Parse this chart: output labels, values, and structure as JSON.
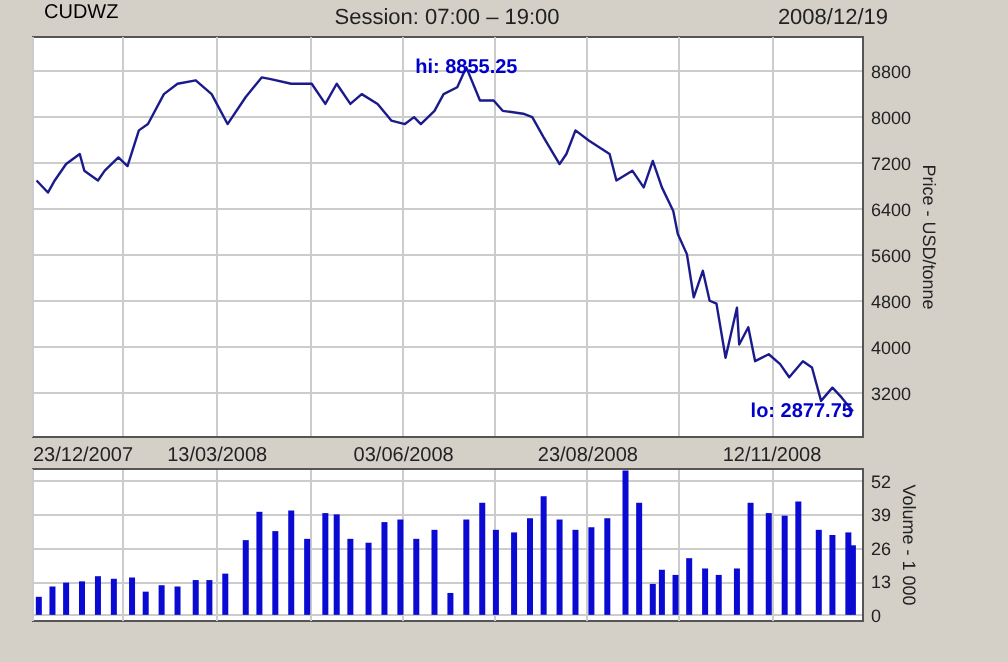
{
  "chart_data": [
    {
      "type": "line",
      "title": "Session: 07:00 – 19:00",
      "ylabel": "Price - USD/tonne",
      "legend": "top left",
      "grid": true,
      "tick_labels": "y",
      "annotations": [
        "2008/12/19",
        {
          "text": "hi: 8855.25",
          "x": "2008-07-01",
          "y": 8855.25
        },
        {
          "text": "lo: 2877.75",
          "x": "2008-12-18",
          "y": 2877.75
        }
      ],
      "xlim": [
        "2007-12-23",
        "2008-12-22"
      ],
      "xticks": [
        "2007-12-23",
        "2008-02-01",
        "2008-03-13",
        "2008-04-23",
        "2008-06-03",
        "2008-07-13",
        "2008-08-23",
        "2008-10-02",
        "2008-11-12"
      ],
      "ylim": [
        2450,
        9400
      ],
      "yticks": [
        3200,
        4000,
        4800,
        5600,
        6400,
        7200,
        8000,
        8800
      ],
      "series": [
        {
          "name": "CUDWZ",
          "color": "#1a1a8c",
          "x": [
            "2007-12-25",
            "2007-12-30",
            "2008-01-02",
            "2008-01-07",
            "2008-01-13",
            "2008-01-15",
            "2008-01-21",
            "2008-01-24",
            "2008-01-30",
            "2008-02-03",
            "2008-02-08",
            "2008-02-12",
            "2008-02-19",
            "2008-02-25",
            "2008-03-04",
            "2008-03-11",
            "2008-03-18",
            "2008-03-26",
            "2008-04-02",
            "2008-04-06",
            "2008-04-15",
            "2008-04-24",
            "2008-04-30",
            "2008-05-05",
            "2008-05-11",
            "2008-05-16",
            "2008-05-23",
            "2008-05-29",
            "2008-06-04",
            "2008-06-08",
            "2008-06-11",
            "2008-06-17",
            "2008-06-21",
            "2008-06-27",
            "2008-07-01",
            "2008-07-07",
            "2008-07-13",
            "2008-07-17",
            "2008-07-26",
            "2008-07-30",
            "2008-08-04",
            "2008-08-11",
            "2008-08-14",
            "2008-08-18",
            "2008-08-24",
            "2008-09-02",
            "2008-09-05",
            "2008-09-12",
            "2008-09-17",
            "2008-09-21",
            "2008-09-25",
            "2008-09-30",
            "2008-10-02",
            "2008-10-06",
            "2008-10-09",
            "2008-10-13",
            "2008-10-16",
            "2008-10-19",
            "2008-10-23",
            "2008-10-28",
            "2008-10-29",
            "2008-11-02",
            "2008-11-05",
            "2008-11-11",
            "2008-11-16",
            "2008-11-20",
            "2008-11-26",
            "2008-11-30",
            "2008-12-04",
            "2008-12-09",
            "2008-12-13",
            "2008-12-18"
          ],
          "values": [
            6890,
            6680,
            6890,
            7175,
            7350,
            7060,
            6890,
            7060,
            7290,
            7140,
            7760,
            7870,
            8390,
            8570,
            8630,
            8390,
            7870,
            8340,
            8680,
            8650,
            8570,
            8570,
            8220,
            8570,
            8220,
            8390,
            8220,
            7930,
            7870,
            7990,
            7870,
            8100,
            8390,
            8510,
            8855.25,
            8280,
            8280,
            8100,
            8050,
            7990,
            7640,
            7175,
            7350,
            7760,
            7580,
            7350,
            6890,
            7060,
            6770,
            7230,
            6770,
            6360,
            5960,
            5610,
            4860,
            5320,
            4800,
            4750,
            3810,
            4680,
            4040,
            4340,
            3750,
            3870,
            3700,
            3470,
            3750,
            3640,
            3060,
            3290,
            3120,
            2877.75
          ]
        }
      ]
    },
    {
      "type": "bar",
      "ylabel": "Volume - 1 000",
      "grid": true,
      "color": "#0a0ad2",
      "xlim": [
        "2007-12-23",
        "2008-12-22"
      ],
      "xticks": [
        {
          "value": "2007-12-23",
          "label": "23/12/2007"
        },
        {
          "value": "2008-02-01",
          "label": null
        },
        {
          "value": "2008-03-13",
          "label": "13/03/2008"
        },
        {
          "value": "2008-04-23",
          "label": null
        },
        {
          "value": "2008-06-03",
          "label": "03/06/2008"
        },
        {
          "value": "2008-07-13",
          "label": null
        },
        {
          "value": "2008-08-23",
          "label": "23/08/2008"
        },
        {
          "value": "2008-10-02",
          "label": null
        },
        {
          "value": "2008-11-12",
          "label": "12/11/2008"
        }
      ],
      "ylim": [
        -2,
        57
      ],
      "yticks": [
        0,
        13,
        26,
        39,
        52
      ],
      "x": [
        "2007-12-26",
        "2008-01-01",
        "2008-01-07",
        "2008-01-14",
        "2008-01-21",
        "2008-01-28",
        "2008-02-05",
        "2008-02-11",
        "2008-02-18",
        "2008-02-25",
        "2008-03-04",
        "2008-03-10",
        "2008-03-17",
        "2008-03-26",
        "2008-04-01",
        "2008-04-08",
        "2008-04-15",
        "2008-04-22",
        "2008-04-30",
        "2008-05-05",
        "2008-05-11",
        "2008-05-19",
        "2008-05-26",
        "2008-06-02",
        "2008-06-09",
        "2008-06-17",
        "2008-06-24",
        "2008-07-01",
        "2008-07-08",
        "2008-07-14",
        "2008-07-22",
        "2008-07-29",
        "2008-08-04",
        "2008-08-11",
        "2008-08-18",
        "2008-08-25",
        "2008-09-01",
        "2008-09-09",
        "2008-09-15",
        "2008-09-21",
        "2008-09-25",
        "2008-10-01",
        "2008-10-07",
        "2008-10-14",
        "2008-10-20",
        "2008-10-28",
        "2008-11-03",
        "2008-11-11",
        "2008-11-18",
        "2008-11-24",
        "2008-12-03",
        "2008-12-09",
        "2008-12-16",
        "2008-12-18"
      ],
      "values": [
        7,
        11,
        12.5,
        13,
        15,
        14,
        14.5,
        9,
        11.5,
        11,
        13.5,
        13.5,
        16,
        29,
        40,
        32.5,
        40.5,
        29.5,
        39.5,
        39,
        29.5,
        28,
        36,
        37,
        29.5,
        33,
        8.5,
        37,
        43.5,
        33,
        32,
        37.5,
        46,
        37,
        33,
        34,
        37.5,
        56,
        43.5,
        12,
        17.5,
        15.5,
        22,
        18,
        15.5,
        18,
        43.5,
        39.5,
        38.5,
        44,
        33,
        31,
        32,
        27
      ]
    }
  ]
}
